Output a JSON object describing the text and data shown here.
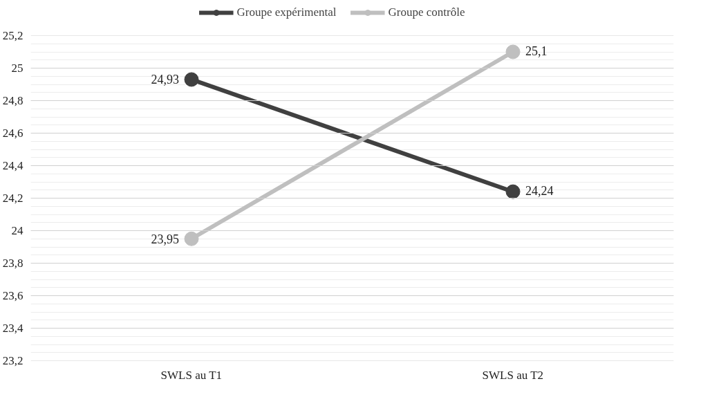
{
  "chart_data": {
    "type": "line",
    "categories": [
      "SWLS au T1",
      "SWLS au T2"
    ],
    "series": [
      {
        "name": "Groupe expérimental",
        "color": "#404040",
        "values": [
          24.93,
          24.24
        ],
        "value_labels": [
          "24,93",
          "24,24"
        ]
      },
      {
        "name": "Groupe contrôle",
        "color": "#bfbfbf",
        "values": [
          23.95,
          25.1
        ],
        "value_labels": [
          "23,95",
          "25,1"
        ]
      }
    ],
    "ylim": [
      23.2,
      25.2
    ],
    "yticks": [
      {
        "value": 23.2,
        "label": "23,2"
      },
      {
        "value": 23.4,
        "label": "23,4"
      },
      {
        "value": 23.6,
        "label": "23,6"
      },
      {
        "value": 23.8,
        "label": "23,8"
      },
      {
        "value": 24,
        "label": "24"
      },
      {
        "value": 24.2,
        "label": "24,2"
      },
      {
        "value": 24.4,
        "label": "24,4"
      },
      {
        "value": 24.6,
        "label": "24,6"
      },
      {
        "value": 24.8,
        "label": "24,8"
      },
      {
        "value": 25,
        "label": "25"
      },
      {
        "value": 25.2,
        "label": "25,2"
      }
    ],
    "grid": "y",
    "legend": "top",
    "marker": "circle",
    "line_style": "solid"
  }
}
